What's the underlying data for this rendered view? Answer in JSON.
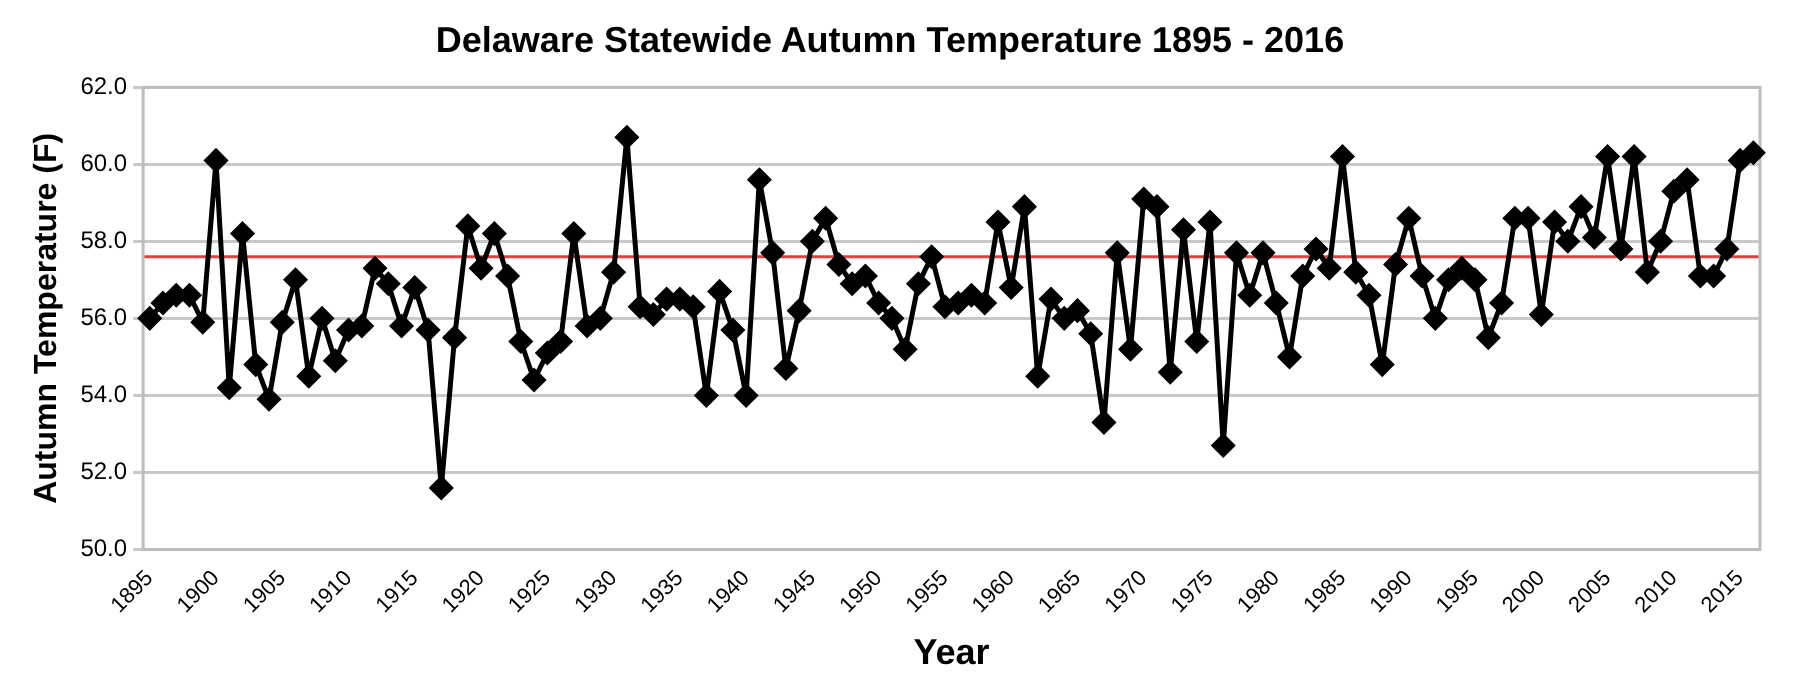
{
  "chart_data": {
    "type": "line",
    "title": "Delaware Statewide Autumn Temperature 1895 - 2016",
    "xlabel": "Year",
    "ylabel": "Autumn Temperature (F)",
    "categories": [
      "1895",
      null,
      null,
      null,
      null,
      "1900",
      null,
      null,
      null,
      null,
      "1905",
      null,
      null,
      null,
      null,
      "1910",
      null,
      null,
      null,
      null,
      "1915",
      null,
      null,
      null,
      null,
      "1920",
      null,
      null,
      null,
      null,
      "1925",
      null,
      null,
      null,
      null,
      "1930",
      null,
      null,
      null,
      null,
      "1935",
      null,
      null,
      null,
      null,
      "1940",
      null,
      null,
      null,
      null,
      "1945",
      null,
      null,
      null,
      null,
      "1950",
      null,
      null,
      null,
      null,
      "1955",
      null,
      null,
      null,
      null,
      "1960",
      null,
      null,
      null,
      null,
      "1965",
      null,
      null,
      null,
      null,
      "1970",
      null,
      null,
      null,
      null,
      "1975",
      null,
      null,
      null,
      null,
      "1980",
      null,
      null,
      null,
      null,
      "1985",
      null,
      null,
      null,
      null,
      "1990",
      null,
      null,
      null,
      null,
      "1995",
      null,
      null,
      null,
      null,
      "2000",
      null,
      null,
      null,
      null,
      "2005",
      null,
      null,
      null,
      null,
      "2010",
      null,
      null,
      null,
      null,
      "2015",
      null
    ],
    "series": [
      {
        "color": "#000000",
        "values": [
          56.0,
          56.4,
          56.6,
          56.6,
          55.9,
          60.1,
          54.2,
          58.2,
          54.8,
          53.9,
          55.9,
          57.0,
          54.5,
          56.0,
          54.9,
          55.7,
          55.8,
          57.3,
          56.9,
          55.8,
          56.8,
          55.7,
          51.6,
          55.5,
          58.4,
          57.3,
          58.2,
          57.1,
          55.4,
          54.4,
          55.1,
          55.4,
          58.2,
          55.8,
          56.0,
          57.2,
          60.7,
          56.3,
          56.1,
          56.5,
          56.5,
          56.3,
          54.0,
          56.7,
          55.7,
          54.0,
          59.6,
          57.7,
          54.7,
          56.2,
          58.0,
          58.6,
          57.4,
          56.9,
          57.1,
          56.4,
          56.0,
          55.2,
          56.9,
          57.6,
          56.3,
          56.4,
          56.6,
          56.4,
          58.5,
          56.8,
          58.9,
          54.5,
          56.5,
          56.0,
          56.2,
          55.6,
          53.3,
          57.7,
          55.2,
          59.1,
          58.9,
          54.6,
          58.3,
          55.4,
          58.5,
          52.7,
          57.7,
          56.6,
          57.7,
          56.4,
          55.0,
          57.1,
          57.8,
          57.3,
          60.2,
          57.2,
          56.6,
          54.8,
          57.4,
          58.6,
          57.1,
          56.0,
          57.0,
          57.3,
          57.0,
          55.5,
          56.4,
          58.6,
          58.6,
          56.1,
          58.5,
          58.0,
          58.9,
          58.1,
          60.2,
          57.8,
          60.2,
          57.2,
          58.0,
          59.3,
          59.6,
          57.1,
          57.1,
          57.8,
          60.1,
          60.3
        ]
      }
    ],
    "ylim": [
      50,
      62
    ],
    "yticks": [
      {
        "value": 50,
        "label": "50.0"
      },
      {
        "value": 52,
        "label": "52.0"
      },
      {
        "value": 54,
        "label": "54.0"
      },
      {
        "value": 56,
        "label": "56.0"
      },
      {
        "value": 58,
        "label": "58.0"
      },
      {
        "value": 60,
        "label": "60.0"
      },
      {
        "value": 62,
        "label": "62.0"
      }
    ],
    "ref_lines": [
      {
        "axis": "y",
        "value": 57.6,
        "color": "#d64541"
      }
    ],
    "grid": "y",
    "legend": false,
    "marker": "diamond",
    "line_style": "solid"
  }
}
